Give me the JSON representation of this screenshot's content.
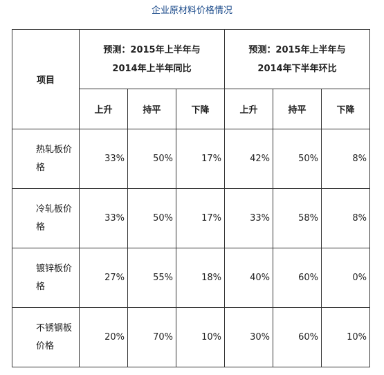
{
  "page_title": "企业原材料价格情况",
  "table": {
    "item_header": "项目",
    "groups": [
      {
        "line1": "预测：2015年上半年与",
        "line2": "2014年上半年同比"
      },
      {
        "line1": "预测：2015年上半年与",
        "line2": "2014年下半年环比"
      }
    ],
    "subheaders": [
      "上升",
      "持平",
      "下降",
      "上升",
      "持平",
      "下降"
    ],
    "rows": [
      {
        "name_line1": "热轧板价",
        "name_line2": "格",
        "values": [
          "33%",
          "50%",
          "17%",
          "42%",
          "50%",
          "8%"
        ]
      },
      {
        "name_line1": "冷轧板价",
        "name_line2": "格",
        "values": [
          "33%",
          "50%",
          "17%",
          "33%",
          "58%",
          "8%"
        ]
      },
      {
        "name_line1": "镀锌板价",
        "name_line2": "格",
        "values": [
          "27%",
          "55%",
          "18%",
          "40%",
          "60%",
          "0%"
        ]
      },
      {
        "name_line1": "不锈钢板",
        "name_line2": "价格",
        "values": [
          "20%",
          "70%",
          "10%",
          "30%",
          "60%",
          "10%"
        ]
      }
    ]
  }
}
